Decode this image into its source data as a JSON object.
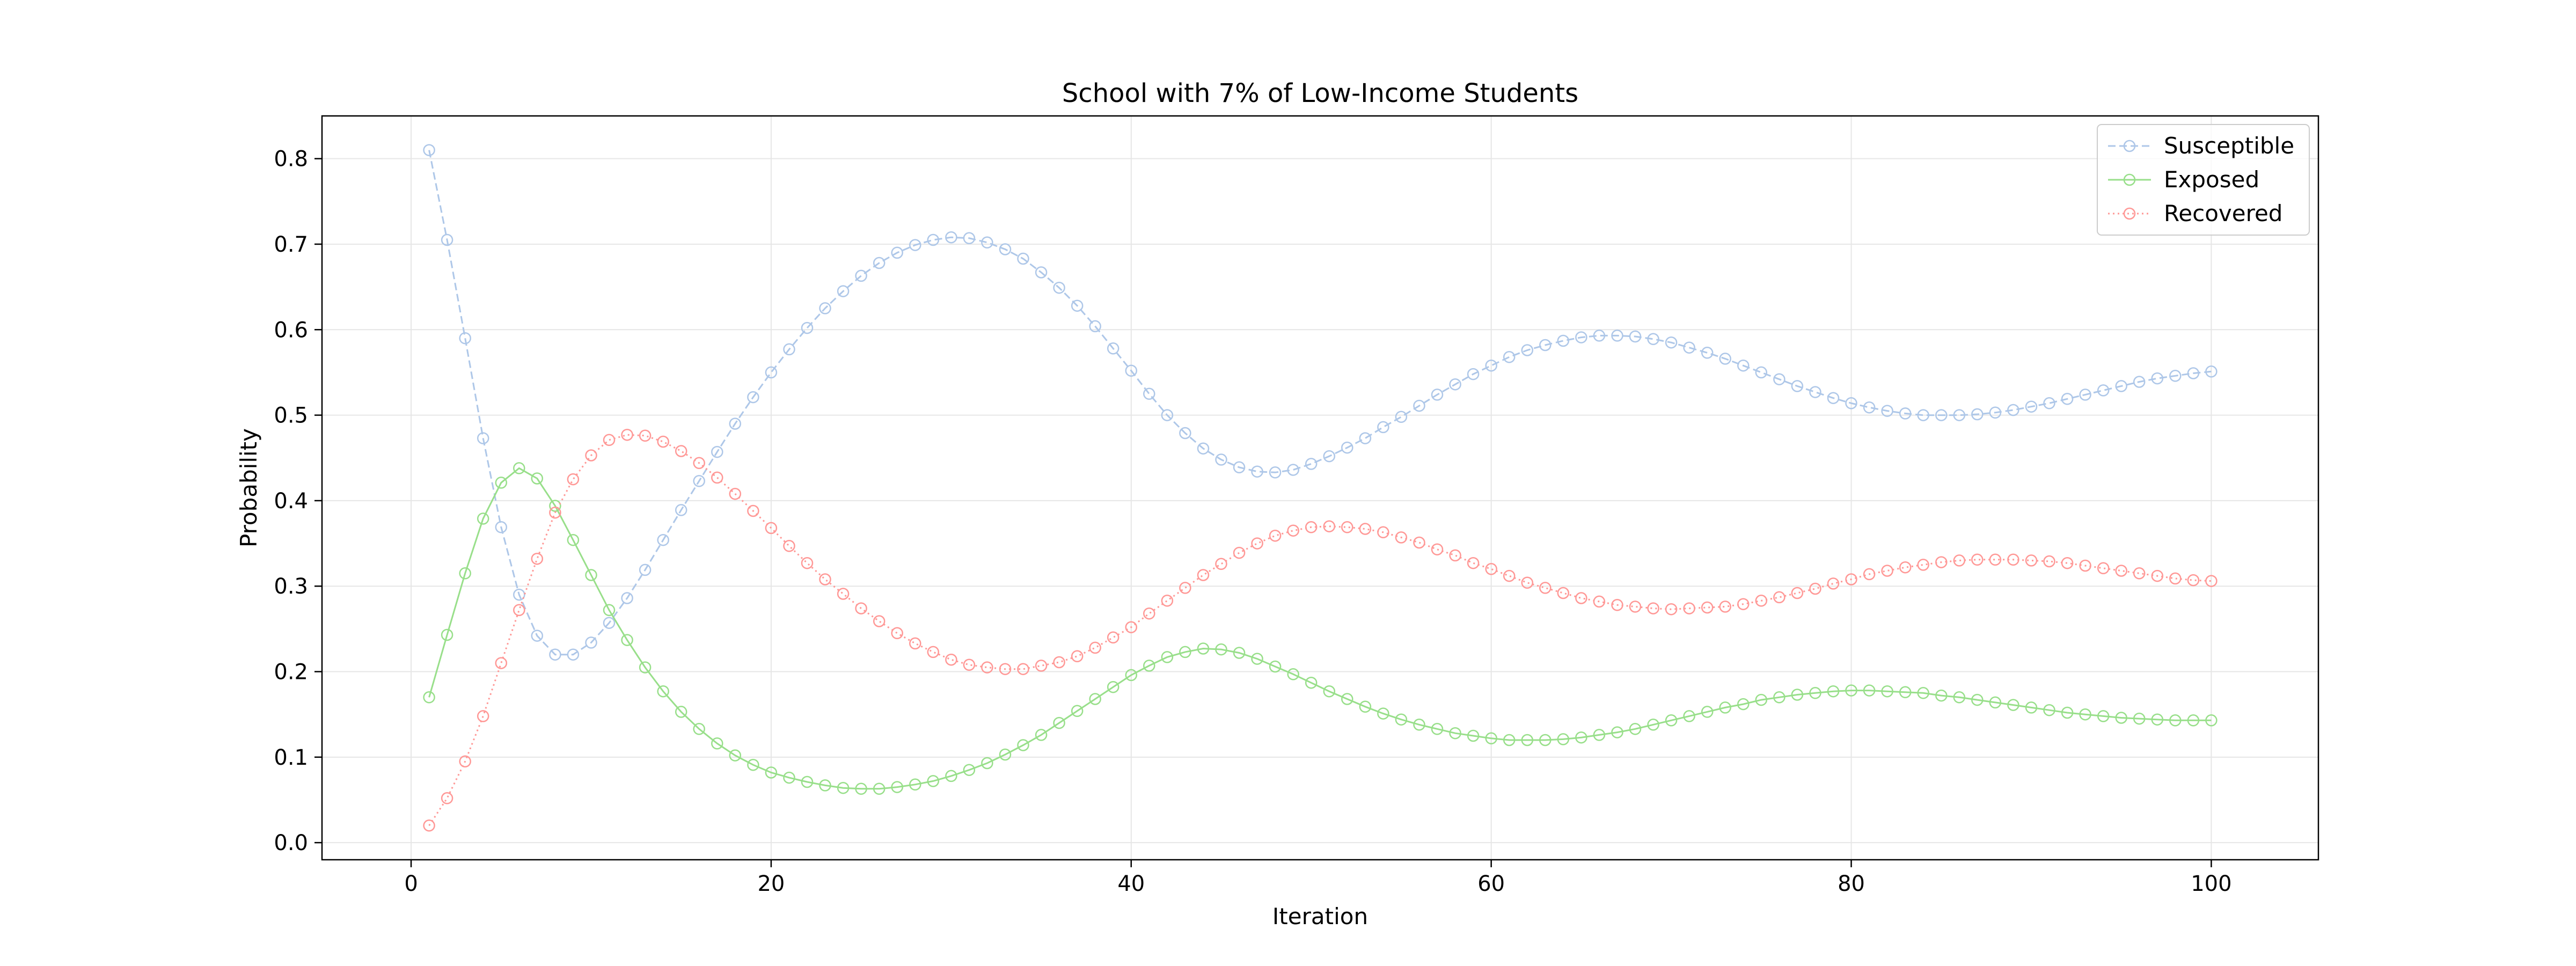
{
  "chart_data": {
    "type": "line",
    "title": "School with 7% of Low-Income Students",
    "xlabel": "Iteration",
    "ylabel": "Probability",
    "xlim": [
      -4.95,
      105.95
    ],
    "ylim": [
      -0.02,
      0.85
    ],
    "xticks": [
      0,
      20,
      40,
      60,
      80,
      100
    ],
    "yticks": [
      0.0,
      0.1,
      0.2,
      0.3,
      0.4,
      0.5,
      0.6,
      0.7,
      0.8
    ],
    "grid": true,
    "legend_position": "top-right",
    "x": [
      1,
      2,
      3,
      4,
      5,
      6,
      7,
      8,
      9,
      10,
      11,
      12,
      13,
      14,
      15,
      16,
      17,
      18,
      19,
      20,
      21,
      22,
      23,
      24,
      25,
      26,
      27,
      28,
      29,
      30,
      31,
      32,
      33,
      34,
      35,
      36,
      37,
      38,
      39,
      40,
      41,
      42,
      43,
      44,
      45,
      46,
      47,
      48,
      49,
      50,
      51,
      52,
      53,
      54,
      55,
      56,
      57,
      58,
      59,
      60,
      61,
      62,
      63,
      64,
      65,
      66,
      67,
      68,
      69,
      70,
      71,
      72,
      73,
      74,
      75,
      76,
      77,
      78,
      79,
      80,
      81,
      82,
      83,
      84,
      85,
      86,
      87,
      88,
      89,
      90,
      91,
      92,
      93,
      94,
      95,
      96,
      97,
      98,
      99,
      100
    ],
    "series": [
      {
        "name": "Susceptible",
        "color": "#aec7e8",
        "linestyle": "dashed",
        "values": [
          0.81,
          0.705,
          0.59,
          0.473,
          0.369,
          0.29,
          0.242,
          0.22,
          0.22,
          0.234,
          0.257,
          0.286,
          0.319,
          0.354,
          0.389,
          0.423,
          0.457,
          0.49,
          0.521,
          0.55,
          0.577,
          0.602,
          0.625,
          0.645,
          0.663,
          0.678,
          0.69,
          0.699,
          0.705,
          0.708,
          0.707,
          0.702,
          0.694,
          0.683,
          0.667,
          0.649,
          0.628,
          0.604,
          0.578,
          0.552,
          0.525,
          0.5,
          0.479,
          0.461,
          0.448,
          0.439,
          0.434,
          0.433,
          0.436,
          0.443,
          0.452,
          0.462,
          0.473,
          0.486,
          0.498,
          0.511,
          0.524,
          0.536,
          0.548,
          0.558,
          0.568,
          0.576,
          0.582,
          0.587,
          0.591,
          0.593,
          0.593,
          0.592,
          0.589,
          0.585,
          0.579,
          0.573,
          0.566,
          0.558,
          0.55,
          0.542,
          0.534,
          0.527,
          0.52,
          0.514,
          0.509,
          0.505,
          0.502,
          0.5,
          0.5,
          0.5,
          0.501,
          0.503,
          0.506,
          0.51,
          0.514,
          0.519,
          0.524,
          0.529,
          0.534,
          0.539,
          0.543,
          0.546,
          0.549,
          0.551
        ]
      },
      {
        "name": "Exposed",
        "color": "#98df8a",
        "linestyle": "solid",
        "values": [
          0.17,
          0.243,
          0.315,
          0.379,
          0.421,
          0.438,
          0.426,
          0.394,
          0.354,
          0.313,
          0.272,
          0.237,
          0.205,
          0.177,
          0.153,
          0.133,
          0.116,
          0.102,
          0.091,
          0.082,
          0.076,
          0.071,
          0.067,
          0.064,
          0.063,
          0.063,
          0.065,
          0.068,
          0.072,
          0.078,
          0.085,
          0.093,
          0.103,
          0.114,
          0.126,
          0.14,
          0.154,
          0.168,
          0.182,
          0.196,
          0.207,
          0.217,
          0.223,
          0.227,
          0.226,
          0.222,
          0.215,
          0.206,
          0.197,
          0.187,
          0.177,
          0.168,
          0.159,
          0.151,
          0.144,
          0.138,
          0.133,
          0.128,
          0.125,
          0.122,
          0.12,
          0.12,
          0.12,
          0.121,
          0.123,
          0.126,
          0.129,
          0.133,
          0.138,
          0.143,
          0.148,
          0.153,
          0.158,
          0.162,
          0.167,
          0.17,
          0.173,
          0.175,
          0.177,
          0.178,
          0.178,
          0.177,
          0.176,
          0.175,
          0.172,
          0.17,
          0.167,
          0.164,
          0.161,
          0.158,
          0.155,
          0.152,
          0.15,
          0.148,
          0.146,
          0.145,
          0.144,
          0.143,
          0.143,
          0.143
        ]
      },
      {
        "name": "Recovered",
        "color": "#ff9896",
        "linestyle": "dotted",
        "values": [
          0.02,
          0.052,
          0.095,
          0.148,
          0.21,
          0.272,
          0.332,
          0.386,
          0.425,
          0.453,
          0.471,
          0.477,
          0.476,
          0.469,
          0.458,
          0.444,
          0.427,
          0.408,
          0.388,
          0.368,
          0.347,
          0.327,
          0.308,
          0.291,
          0.274,
          0.259,
          0.245,
          0.233,
          0.223,
          0.214,
          0.208,
          0.205,
          0.203,
          0.203,
          0.207,
          0.211,
          0.218,
          0.228,
          0.24,
          0.252,
          0.268,
          0.283,
          0.298,
          0.313,
          0.326,
          0.339,
          0.35,
          0.359,
          0.365,
          0.369,
          0.37,
          0.369,
          0.367,
          0.363,
          0.357,
          0.351,
          0.343,
          0.336,
          0.327,
          0.32,
          0.312,
          0.304,
          0.298,
          0.292,
          0.286,
          0.282,
          0.278,
          0.276,
          0.274,
          0.273,
          0.274,
          0.275,
          0.276,
          0.279,
          0.283,
          0.287,
          0.292,
          0.297,
          0.303,
          0.308,
          0.314,
          0.318,
          0.322,
          0.325,
          0.328,
          0.33,
          0.331,
          0.331,
          0.331,
          0.33,
          0.329,
          0.327,
          0.324,
          0.321,
          0.318,
          0.315,
          0.312,
          0.309,
          0.307,
          0.306
        ]
      }
    ]
  }
}
